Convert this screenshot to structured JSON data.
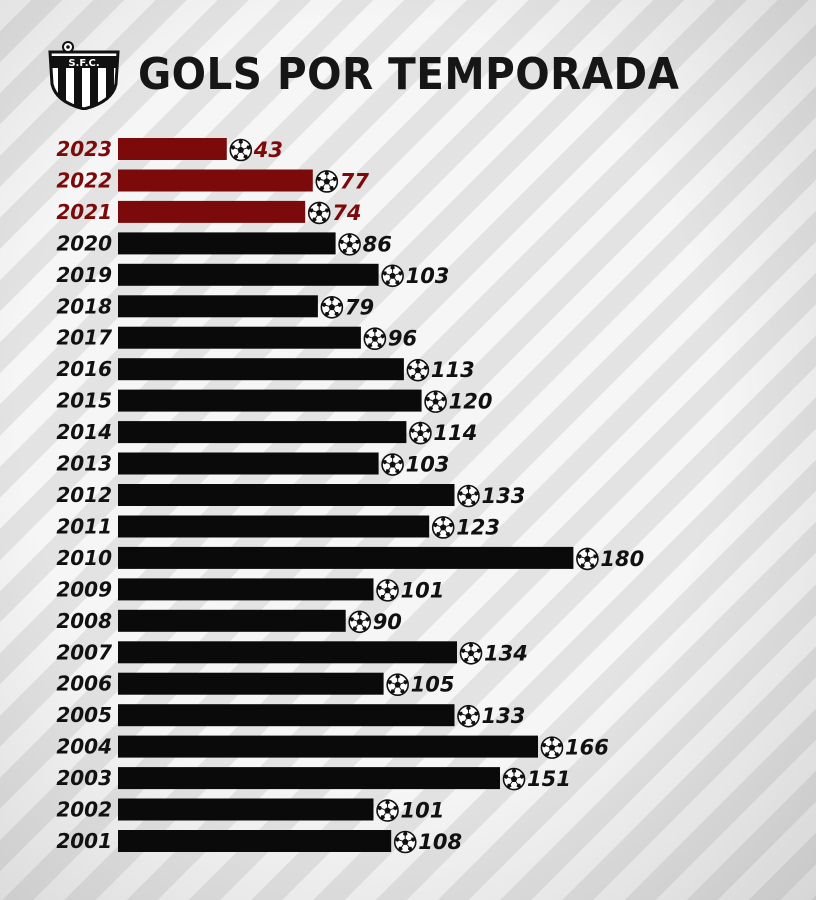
{
  "header": {
    "title": "GOLS POR TEMPORADA",
    "crest_text": "S.F.C."
  },
  "icons": {
    "crest": "santos-fc-crest-icon",
    "ball": "soccer-ball-icon"
  },
  "colors": {
    "highlight": "#7d0a0a",
    "default_bar": "#0a0a0a",
    "text_dark": "#161616"
  },
  "chart_data": {
    "type": "bar",
    "orientation": "horizontal",
    "title": "GOLS POR TEMPORADA",
    "categories": [
      "2023",
      "2022",
      "2021",
      "2020",
      "2019",
      "2018",
      "2017",
      "2016",
      "2015",
      "2014",
      "2013",
      "2012",
      "2011",
      "2010",
      "2009",
      "2008",
      "2007",
      "2006",
      "2005",
      "2004",
      "2003",
      "2002",
      "2001"
    ],
    "values": [
      43,
      77,
      74,
      86,
      103,
      79,
      96,
      113,
      120,
      114,
      103,
      133,
      123,
      180,
      101,
      90,
      134,
      105,
      133,
      166,
      151,
      101,
      108
    ],
    "highlighted_categories": [
      "2023",
      "2022",
      "2021"
    ],
    "xlabel": "",
    "ylabel": "",
    "grid": false,
    "legend": "none"
  }
}
